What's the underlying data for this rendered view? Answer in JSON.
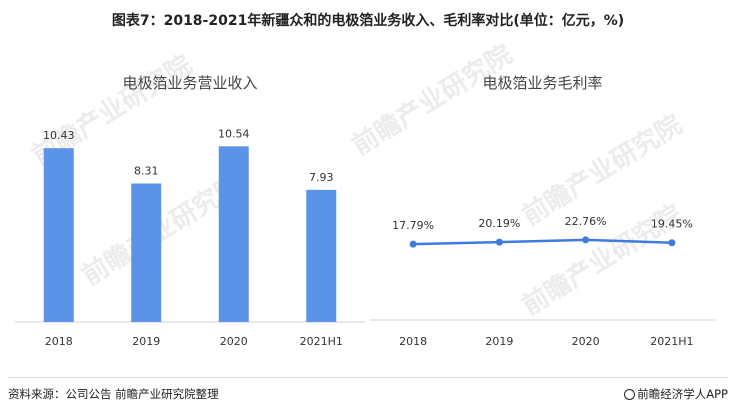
{
  "title": "图表7：2018-2021年新疆众和的电极箔业务收入、毛利率对比(单位：亿元，%)",
  "watermark": "前瞻产业研究院",
  "footer": {
    "source": "资料来源：公司公告 前瞻产业研究院整理",
    "brand": "前瞻经济学人APP"
  },
  "colors": {
    "bar": "#5B93E8",
    "line": "#3D7BE0",
    "axis": "#d0d0d0"
  },
  "chart_data": [
    {
      "type": "bar",
      "title": "电极箔业务营业收入",
      "categories": [
        "2018",
        "2019",
        "2020",
        "2021H1"
      ],
      "values": [
        10.43,
        8.31,
        10.54,
        7.93
      ],
      "data_labels": [
        "10.43",
        "8.31",
        "10.54",
        "7.93"
      ],
      "ylim": [
        0,
        12
      ],
      "grid": false,
      "xlabel": "",
      "ylabel": ""
    },
    {
      "type": "line",
      "title": "电极箔业务毛利率",
      "categories": [
        "2018",
        "2019",
        "2020",
        "2021H1"
      ],
      "values": [
        17.79,
        20.19,
        22.76,
        19.45
      ],
      "data_labels": [
        "17.79%",
        "20.19%",
        "22.76%",
        "19.45%"
      ],
      "ylim": [
        -70,
        150
      ],
      "grid": false,
      "xlabel": "",
      "ylabel": ""
    }
  ]
}
